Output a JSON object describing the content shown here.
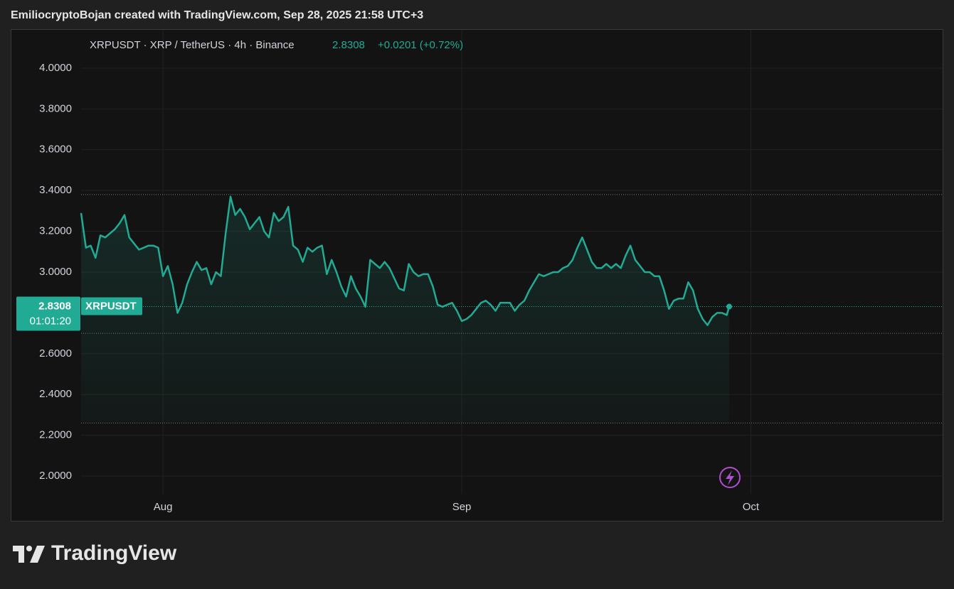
{
  "header": "EmiliocryptoBojan created with TradingView.com, Sep 28, 2025 21:58 UTC+3",
  "footer_logo": "TradingView",
  "chart_data": {
    "type": "line",
    "legend_symbol": "XRPUSDT · XRP / TetherUS · 4h · Binance",
    "last_price": 2.8308,
    "change": "+0.0201 (+0.72%)",
    "countdown": "01:01:20",
    "tag_name": "XRPUSDT",
    "xlim": [
      204.5,
      293.9
    ],
    "xticks": [
      {
        "value": 213,
        "label": "Aug"
      },
      {
        "value": 244,
        "label": "Sep"
      },
      {
        "value": 274,
        "label": "Oct"
      }
    ],
    "ylim": [
      1.913,
      4.188
    ],
    "yticks": [
      {
        "value": 2,
        "label": "2.0000"
      },
      {
        "value": 2.2,
        "label": "2.2000"
      },
      {
        "value": 2.4,
        "label": "2.4000"
      },
      {
        "value": 2.6,
        "label": "2.6000"
      },
      {
        "value": 3,
        "label": "3.0000"
      },
      {
        "value": 3.2,
        "label": "3.2000"
      },
      {
        "value": 3.4,
        "label": "3.4000"
      },
      {
        "value": 3.6,
        "label": "3.6000"
      },
      {
        "value": 3.8,
        "label": "3.8000"
      },
      {
        "value": 4,
        "label": "4.0000"
      }
    ],
    "reference_lines": [
      3.38,
      2.7,
      2.26
    ],
    "area_base": 2.26,
    "grid": true,
    "series": [
      {
        "name": "XRPUSDT",
        "color": "#22ab94",
        "x": [
          204.5,
          205,
          205.5,
          206,
          206.5,
          207,
          207.5,
          208,
          208.5,
          209,
          209.5,
          210,
          210.5,
          211,
          211.5,
          212,
          212.5,
          213,
          213.5,
          214,
          214.5,
          215,
          215.5,
          216,
          216.5,
          217,
          217.5,
          218,
          218.5,
          219,
          219.5,
          220,
          220.5,
          221,
          221.5,
          222,
          222.5,
          223,
          223.5,
          224,
          224.5,
          225,
          225.5,
          226,
          226.5,
          227,
          227.5,
          228,
          228.5,
          229,
          229.5,
          230,
          230.5,
          231,
          231.5,
          232,
          232.5,
          233,
          233.5,
          234,
          234.5,
          235,
          235.5,
          236,
          236.5,
          237,
          237.5,
          238,
          238.5,
          239,
          239.5,
          240,
          240.5,
          241,
          241.5,
          242,
          242.5,
          243,
          243.5,
          244,
          244.5,
          245,
          245.5,
          246,
          246.5,
          247,
          247.5,
          248,
          248.5,
          249,
          249.5,
          250,
          250.5,
          251,
          251.5,
          252,
          252.5,
          253,
          253.5,
          254,
          254.5,
          255,
          255.5,
          256,
          256.5,
          257,
          257.5,
          258,
          258.5,
          259,
          259.5,
          260,
          260.5,
          261,
          261.5,
          262,
          262.5,
          263,
          263.5,
          264,
          264.5,
          265,
          265.5,
          266,
          266.5,
          267,
          267.5,
          268,
          268.5,
          269,
          269.5,
          270,
          270.5,
          271,
          271.5,
          271.75
        ],
        "values": [
          3.29,
          3.12,
          3.13,
          3.07,
          3.18,
          3.17,
          3.19,
          3.21,
          3.24,
          3.28,
          3.17,
          3.14,
          3.11,
          3.12,
          3.13,
          3.13,
          3.12,
          2.98,
          3.03,
          2.94,
          2.8,
          2.85,
          2.94,
          3.0,
          3.05,
          3.01,
          3.02,
          2.94,
          3.0,
          2.98,
          3.19,
          3.37,
          3.28,
          3.31,
          3.27,
          3.21,
          3.24,
          3.27,
          3.2,
          3.17,
          3.29,
          3.25,
          3.27,
          3.32,
          3.13,
          3.11,
          3.05,
          3.12,
          3.1,
          3.12,
          3.13,
          2.99,
          3.06,
          3.0,
          2.93,
          2.88,
          2.98,
          2.92,
          2.88,
          2.83,
          3.06,
          3.04,
          3.02,
          3.05,
          3.02,
          2.97,
          2.92,
          2.91,
          3.04,
          3.0,
          2.98,
          2.99,
          2.99,
          2.93,
          2.84,
          2.83,
          2.84,
          2.85,
          2.81,
          2.76,
          2.77,
          2.79,
          2.82,
          2.85,
          2.86,
          2.84,
          2.81,
          2.85,
          2.85,
          2.85,
          2.81,
          2.84,
          2.86,
          2.91,
          2.95,
          2.99,
          2.98,
          2.99,
          3.0,
          3.0,
          3.02,
          3.03,
          3.06,
          3.12,
          3.17,
          3.11,
          3.05,
          3.02,
          3.02,
          3.04,
          3.02,
          3.04,
          3.02,
          3.08,
          3.13,
          3.06,
          3.03,
          3.0,
          3.0,
          2.98,
          2.98,
          2.91,
          2.82,
          2.86,
          2.87,
          2.87,
          2.95,
          2.91,
          2.82,
          2.77,
          2.74,
          2.78,
          2.8,
          2.8,
          2.79,
          2.8308
        ]
      }
    ]
  }
}
